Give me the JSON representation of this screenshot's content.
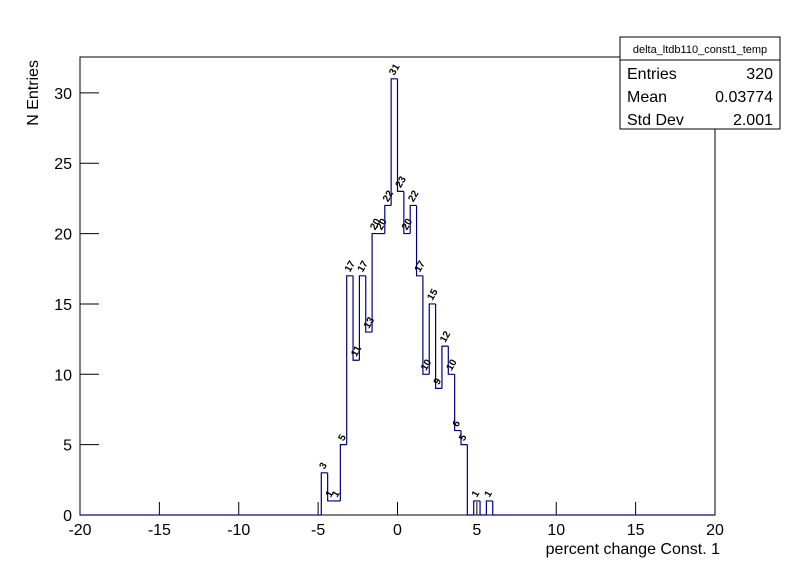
{
  "chart_data": {
    "type": "histogram",
    "x_label": "percent change Const. 1",
    "y_label": "N Entries",
    "bins": [
      -20,
      -19.6,
      -19.2,
      -18.8,
      -18.4,
      -18,
      -17.6,
      -17.2,
      -16.8,
      -16.4,
      -16,
      -15.6,
      -15.2,
      -14.8,
      -14.4,
      -14,
      -13.6,
      -13.2,
      -12.8,
      -12.4,
      -12,
      -11.6,
      -11.2,
      -10.8,
      -10.4,
      -10,
      -9.6,
      -9.2,
      -8.8,
      -8.4,
      -8,
      -7.6,
      -7.2,
      -6.8,
      -6.4,
      -6,
      -5.6,
      -5.2,
      -4.8,
      -4.4,
      -4,
      -3.6,
      -3.2,
      -2.8,
      -2.4,
      -2,
      -1.6,
      -1.2,
      -0.8,
      -0.4,
      0,
      0.4,
      0.8,
      1.2,
      1.6,
      2,
      2.4,
      2.8,
      3.2,
      3.6,
      4,
      4.4,
      4.8,
      5.2,
      5.6,
      6,
      6.4,
      6.8,
      7.2,
      7.6,
      8,
      8.4,
      8.8,
      9.2,
      9.6,
      10,
      10.4,
      10.8,
      11.2,
      11.6,
      12,
      12.4,
      12.8,
      13.2,
      13.6,
      14,
      14.4,
      14.8,
      15.2,
      15.6,
      16,
      16.4,
      16.8,
      17.2,
      17.6,
      18,
      18.4,
      18.8,
      19.2,
      19.6,
      20
    ],
    "values": [
      0,
      0,
      0,
      0,
      0,
      0,
      0,
      0,
      0,
      0,
      0,
      0,
      0,
      0,
      0,
      0,
      0,
      0,
      0,
      0,
      0,
      0,
      0,
      0,
      0,
      0,
      0,
      0,
      0,
      0,
      0,
      0,
      0,
      0,
      0,
      0,
      0,
      0,
      3,
      1,
      1,
      5,
      17,
      11,
      17,
      13,
      20,
      20,
      22,
      31,
      23,
      20,
      22,
      17,
      10,
      15,
      9,
      12,
      10,
      6,
      5,
      0,
      1,
      0,
      1,
      0,
      0,
      0,
      0,
      0,
      0,
      0,
      0,
      0,
      0,
      0,
      0,
      0,
      0,
      0,
      0,
      0,
      0,
      0,
      0,
      0,
      0,
      0,
      0,
      0,
      0,
      0,
      0,
      0,
      0,
      0,
      0,
      0,
      0,
      0
    ],
    "color": "#000080",
    "xlim": [
      -20,
      20
    ],
    "xticks": [
      -20,
      -15,
      -10,
      -5,
      0,
      5,
      10,
      15,
      20
    ],
    "ylim": [
      0,
      32.55
    ],
    "yticks": [
      0,
      5,
      10,
      15,
      20,
      25,
      30
    ],
    "stats": {
      "name": "delta_ltdb110_const1_temp",
      "rows": [
        [
          "Entries",
          "320"
        ],
        [
          "Mean",
          "0.03774"
        ],
        [
          "Std Dev",
          "2.001"
        ]
      ]
    }
  }
}
